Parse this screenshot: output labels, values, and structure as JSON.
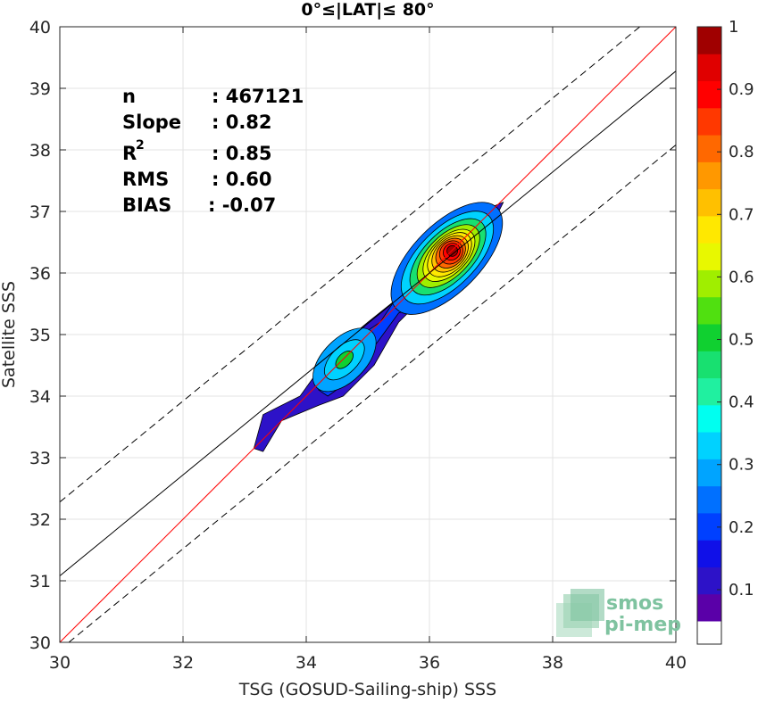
{
  "chart_data": {
    "type": "heatmap",
    "title": "0°≤|LAT|≤ 80°",
    "xlabel": "TSG (GOSUD-Sailing-ship) SSS",
    "ylabel": "Satellite SSS",
    "xlim": [
      30,
      40
    ],
    "ylim": [
      30,
      40
    ],
    "xticks": [
      "30",
      "32",
      "34",
      "36",
      "38",
      "40"
    ],
    "yticks": [
      "30",
      "31",
      "32",
      "33",
      "34",
      "35",
      "36",
      "37",
      "38",
      "39",
      "40"
    ],
    "grid": true,
    "stats": [
      {
        "label": "n",
        "value": ": 467121",
        "sup": ""
      },
      {
        "label": "Slope",
        "value": ": 0.82",
        "sup": ""
      },
      {
        "label": "R",
        "value": ": 0.85",
        "sup": "2"
      },
      {
        "label": "RMS",
        "value": ": 0.60",
        "sup": ""
      },
      {
        "label": "BIAS",
        "value": ": -0.07",
        "sup": ""
      }
    ],
    "lines": [
      {
        "name": "identity",
        "slope": 1.0,
        "intercept": 0.0,
        "color": "#ff0000",
        "style": "solid"
      },
      {
        "name": "regression",
        "slope": 0.82,
        "intercept": 6.48,
        "color": "#000000",
        "style": "solid"
      },
      {
        "name": "regression-upper",
        "slope": 0.82,
        "intercept": 7.68,
        "color": "#000000",
        "style": "dashed"
      },
      {
        "name": "regression-lower",
        "slope": 0.82,
        "intercept": 5.28,
        "color": "#000000",
        "style": "dashed"
      }
    ],
    "peaks": [
      {
        "x": 36.38,
        "y": 36.37,
        "value": 1.0
      },
      {
        "x": 34.62,
        "y": 34.59,
        "value": 0.47
      }
    ],
    "colorbar": {
      "range": [
        0.05,
        1.0
      ],
      "ticks": [
        "0.1",
        "0.2",
        "0.3",
        "0.4",
        "0.5",
        "0.6",
        "0.7",
        "0.8",
        "0.9",
        "1"
      ],
      "tick_values": [
        0.1,
        0.2,
        0.3,
        0.4,
        0.5,
        0.6,
        0.7,
        0.8,
        0.9,
        1.0
      ],
      "colors": [
        "#5a00a8",
        "#2d12c8",
        "#1010e8",
        "#0040ff",
        "#0070ff",
        "#00a4ff",
        "#00d2ff",
        "#00fff0",
        "#20f0a0",
        "#18e070",
        "#10d030",
        "#50e010",
        "#a0ee00",
        "#e8f800",
        "#ffe800",
        "#ffc000",
        "#ff9800",
        "#ff6800",
        "#ff3800",
        "#ff0000",
        "#e00000",
        "#a00000"
      ]
    }
  },
  "logo": {
    "line1": "smos",
    "line2": "pi-mep"
  }
}
